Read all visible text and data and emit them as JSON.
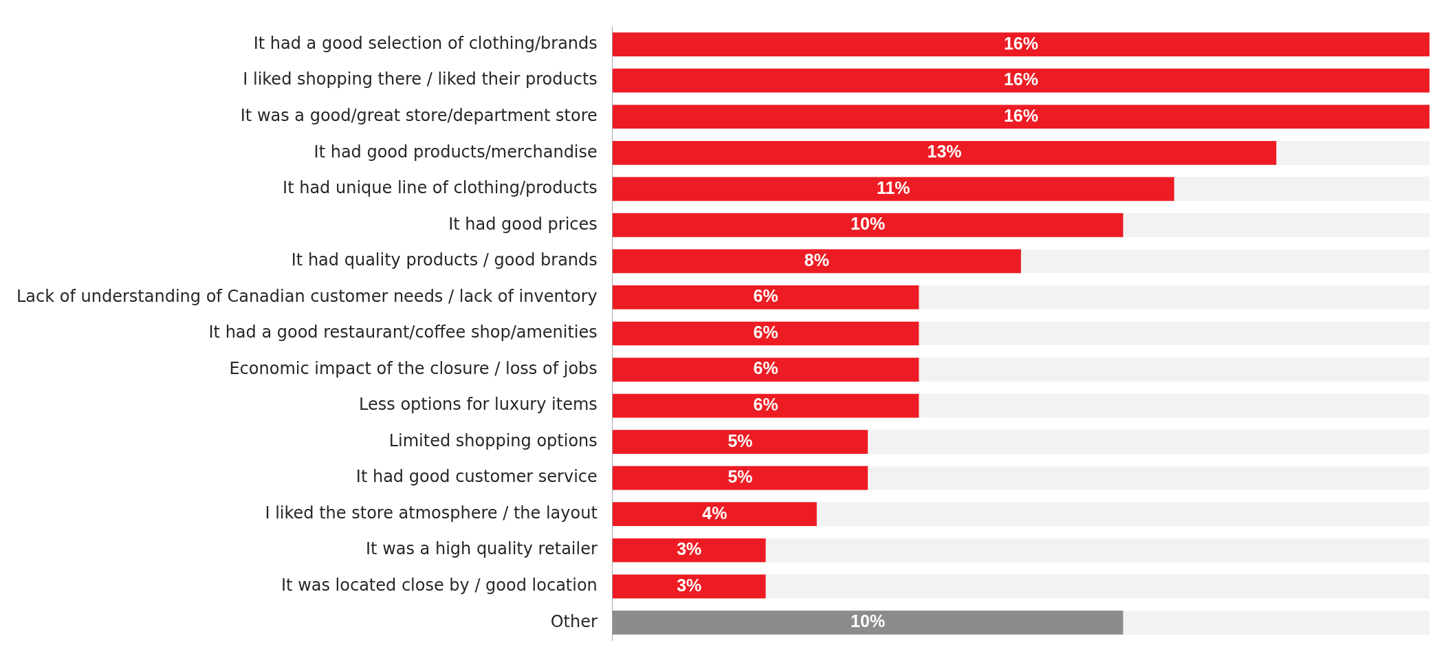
{
  "chart_data": {
    "type": "bar",
    "orientation": "horizontal",
    "categories": [
      "It had a good selection of clothing/brands",
      "I liked shopping there / liked their products",
      "It was a good/great store/department store",
      "It had good products/merchandise",
      "It had unique line of clothing/products",
      "It had good prices",
      "It had quality products / good brands",
      "Lack of understanding of Canadian customer needs / lack of inventory",
      "It had a good restaurant/coffee shop/amenities",
      "Economic impact of the closure / loss of jobs",
      "Less options for luxury items",
      "Limited shopping options",
      "It had good customer service",
      "I liked the store atmosphere / the layout",
      "It was a high quality retailer",
      "It was located close by / good location",
      "Other"
    ],
    "values": [
      16,
      16,
      16,
      13,
      11,
      10,
      8,
      6,
      6,
      6,
      6,
      5,
      5,
      4,
      3,
      3,
      10
    ],
    "colors": [
      "#ed1c24",
      "#ed1c24",
      "#ed1c24",
      "#ed1c24",
      "#ed1c24",
      "#ed1c24",
      "#ed1c24",
      "#ed1c24",
      "#ed1c24",
      "#ed1c24",
      "#ed1c24",
      "#ed1c24",
      "#ed1c24",
      "#ed1c24",
      "#ed1c24",
      "#ed1c24",
      "#8c8c8c"
    ],
    "value_labels": [
      "16%",
      "16%",
      "16%",
      "13%",
      "11%",
      "10%",
      "8%",
      "6%",
      "6%",
      "6%",
      "6%",
      "5%",
      "5%",
      "4%",
      "3%",
      "3%",
      "10%"
    ],
    "tick_labels": "y",
    "grid": false,
    "legend": false
  }
}
